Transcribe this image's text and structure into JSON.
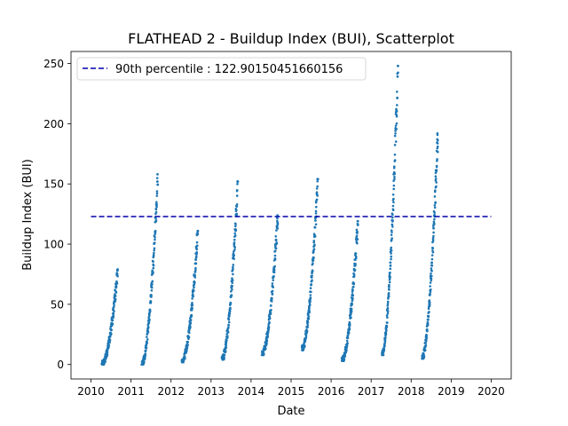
{
  "chart_data": {
    "type": "scatter",
    "title": "FLATHEAD 2 - Buildup Index (BUI), Scatterplot",
    "xlabel": "Date",
    "ylabel": "Buildup Index (BUI)",
    "xlim": [
      2009.5,
      2020.5
    ],
    "ylim": [
      -12,
      260
    ],
    "x_ticks": [
      "2010",
      "2011",
      "2012",
      "2013",
      "2014",
      "2015",
      "2016",
      "2017",
      "2018",
      "2019",
      "2020"
    ],
    "y_ticks": [
      "0",
      "50",
      "100",
      "150",
      "200",
      "250"
    ],
    "point_color": "#1f77b4",
    "reference_line": {
      "value": 122.90150451660156,
      "label": "90th percentile : 122.90150451660156",
      "color": "#0000aa",
      "style": "dashed",
      "x_range": [
        2010.0,
        2020.0
      ]
    },
    "legend": {
      "placement": "top-left"
    },
    "season_ranges": [
      {
        "year": 2010,
        "min": 0,
        "max": 79
      },
      {
        "year": 2011,
        "min": 0,
        "max": 158
      },
      {
        "year": 2012,
        "min": 2,
        "max": 111
      },
      {
        "year": 2013,
        "min": 4,
        "max": 152
      },
      {
        "year": 2014,
        "min": 8,
        "max": 124
      },
      {
        "year": 2015,
        "min": 12,
        "max": 154
      },
      {
        "year": 2016,
        "min": 3,
        "max": 119
      },
      {
        "year": 2017,
        "min": 8,
        "max": 248
      },
      {
        "year": 2018,
        "min": 5,
        "max": 192
      }
    ]
  }
}
